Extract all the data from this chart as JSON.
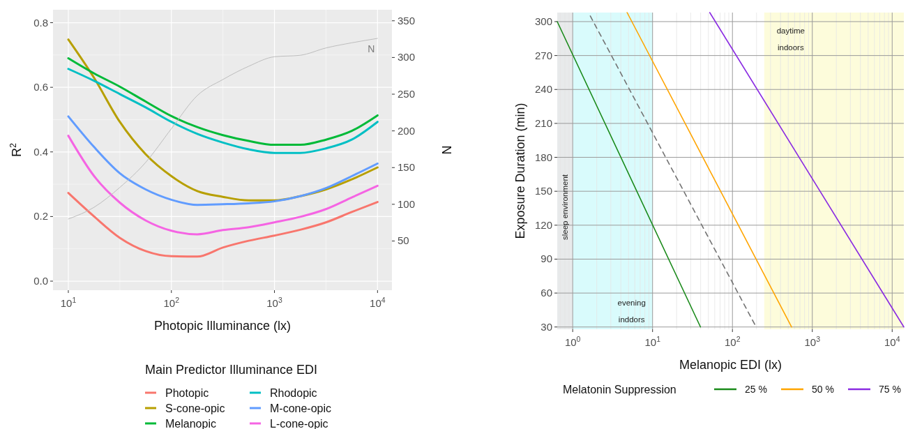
{
  "chart_data": [
    {
      "type": "line",
      "xlabel": "Photopic Illuminance (lx)",
      "ylabel": "R$^{2}$",
      "y2label": "N",
      "legend_title": "Main Predictor Illuminance EDI",
      "log": "x",
      "grid": true,
      "legend": "bottom",
      "x": [
        10,
        17.8,
        31.6,
        56.2,
        100,
        178,
        316,
        562,
        1000,
        1778,
        3162,
        5623,
        10000
      ],
      "xlim": [
        7.1,
        13800
      ],
      "xticks": [
        {
          "value": 10,
          "label": "10$^{1}$"
        },
        {
          "value": 100,
          "label": "10$^{2}$"
        },
        {
          "value": 1000,
          "label": "10$^{3}$"
        },
        {
          "value": 10000,
          "label": "10$^{4}$"
        }
      ],
      "ylim": [
        -0.028,
        0.84
      ],
      "yticks": [
        {
          "value": 0,
          "label": "0.0"
        },
        0.2,
        0.4,
        0.6,
        0.8
      ],
      "y2lim": [
        -17,
        365
      ],
      "y2ticks": [
        50,
        100,
        150,
        200,
        250,
        300,
        350
      ],
      "series": [
        {
          "name": "Photopic",
          "color": "#f8766d",
          "values": [
            0.273,
            0.2,
            0.134,
            0.093,
            0.077,
            0.076,
            0.104,
            0.125,
            0.141,
            0.159,
            0.182,
            0.214,
            0.245
          ]
        },
        {
          "name": "S-cone-opic",
          "color": "#b79f00",
          "values": [
            0.748,
            0.629,
            0.493,
            0.393,
            0.325,
            0.279,
            0.261,
            0.25,
            0.25,
            0.263,
            0.284,
            0.315,
            0.352
          ]
        },
        {
          "name": "Melanopic",
          "color": "#00ba38",
          "values": [
            0.69,
            0.643,
            0.602,
            0.556,
            0.511,
            0.477,
            0.452,
            0.434,
            0.422,
            0.422,
            0.438,
            0.465,
            0.513
          ]
        },
        {
          "name": "Rhodopic",
          "color": "#00bfc4",
          "values": [
            0.657,
            0.62,
            0.579,
            0.538,
            0.493,
            0.456,
            0.429,
            0.408,
            0.397,
            0.397,
            0.411,
            0.438,
            0.493
          ]
        },
        {
          "name": "M-cone-opic",
          "color": "#619cff",
          "values": [
            0.51,
            0.415,
            0.334,
            0.284,
            0.252,
            0.236,
            0.238,
            0.241,
            0.247,
            0.263,
            0.288,
            0.325,
            0.364
          ]
        },
        {
          "name": "L-cone-opic",
          "color": "#f564e3",
          "values": [
            0.45,
            0.325,
            0.243,
            0.188,
            0.156,
            0.145,
            0.158,
            0.167,
            0.182,
            0.199,
            0.223,
            0.259,
            0.295
          ]
        },
        {
          "name": "N",
          "color": "#bdbdbd",
          "axis": "y2",
          "values": [
            80,
            96,
            123,
            157,
            203,
            248,
            270,
            288,
            301,
            303,
            313,
            320,
            326
          ]
        }
      ]
    },
    {
      "type": "line",
      "xlabel": "Melanopic EDI (lx)",
      "ylabel": "Exposure Duration (min)",
      "legend_title": "Melatonin Suppression",
      "log": "x",
      "grid": true,
      "legend": "bottom",
      "xlim": [
        0.64,
        14000
      ],
      "xticks": [
        {
          "value": 1,
          "label": "10$^{0}$"
        },
        {
          "value": 10,
          "label": "10$^{1}$"
        },
        {
          "value": 100,
          "label": "10$^{2}$"
        },
        {
          "value": 1000,
          "label": "10$^{3}$"
        },
        {
          "value": 10000,
          "label": "10$^{4}$"
        }
      ],
      "ylim": [
        28,
        308
      ],
      "yticks": [
        30,
        60,
        90,
        120,
        150,
        180,
        210,
        240,
        270,
        300
      ],
      "bands": [
        {
          "axis": "x",
          "from": 0.64,
          "to": 1,
          "label": "sleep environment",
          "color": "#e8eaeb"
        },
        {
          "axis": "x",
          "from": 1,
          "to": 10,
          "label": "evening inddors",
          "color": "#d9fbfc"
        },
        {
          "axis": "x",
          "from": 250,
          "to": 14000,
          "label": "daytime indoors",
          "color": "#fdfcdb"
        }
      ],
      "series": [
        {
          "name": "25 %",
          "color": "#1a8a1a",
          "x": [
            0.64,
            39.8
          ],
          "values": [
            300,
            30
          ]
        },
        {
          "color": "#737373",
          "line_style": "dashed",
          "x": [
            1.66,
            198
          ],
          "values": [
            305,
            30
          ]
        },
        {
          "name": "50 %",
          "color": "#ffa500",
          "x": [
            4.8,
            551
          ],
          "values": [
            308,
            30
          ]
        },
        {
          "name": "75 %",
          "color": "#8a2be2",
          "x": [
            52,
            14000
          ],
          "values": [
            308,
            30
          ]
        }
      ]
    }
  ]
}
